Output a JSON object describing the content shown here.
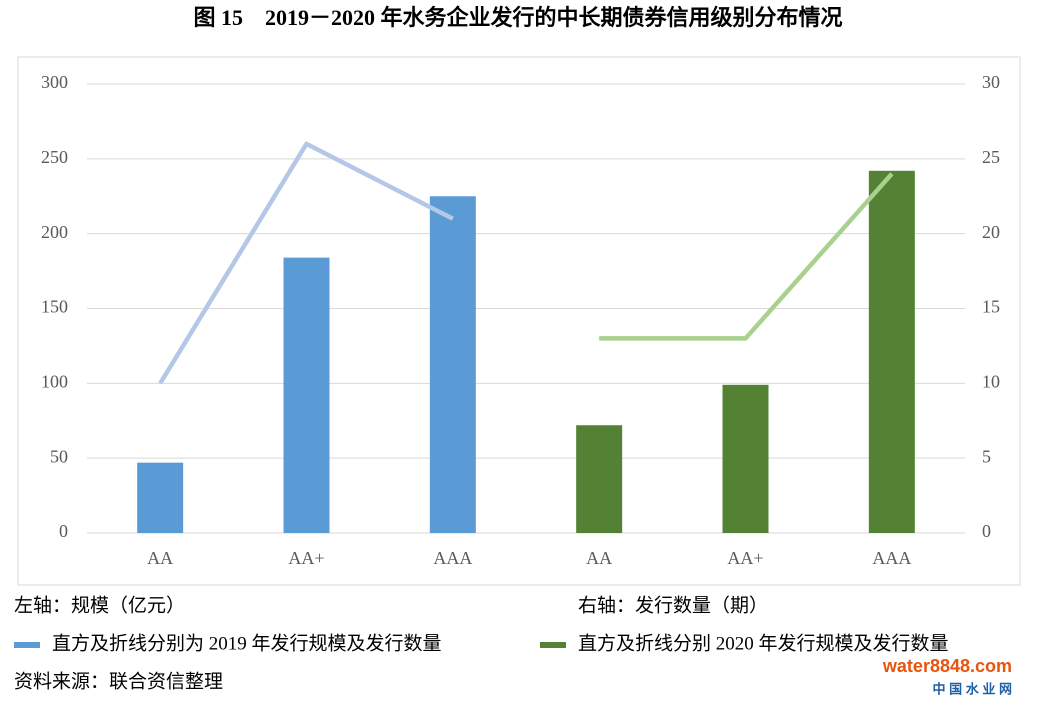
{
  "chart_data": {
    "type": "bar",
    "title": "图 15　2019－2020 年水务企业发行的中长期债券信用级别分布情况",
    "categories": [
      "AA",
      "AA+",
      "AAA",
      "AA",
      "AA+",
      "AAA"
    ],
    "series": [
      {
        "name": "直方及折线分别为 2019 年发行规模及发行数量",
        "color": "#5b9bd5",
        "line_color": "#b4c7e7",
        "values": [
          47,
          184,
          225,
          null,
          null,
          null
        ],
        "line_values": [
          10,
          26,
          21,
          null,
          null,
          null
        ]
      },
      {
        "name": "直方及折线分别 2020 年发行规模及发行数量",
        "color": "#548235",
        "line_color": "#a9d18e",
        "values": [
          null,
          null,
          null,
          72,
          99,
          242
        ],
        "line_values": [
          null,
          null,
          null,
          13,
          13,
          24
        ]
      }
    ],
    "ylim": [
      0,
      300
    ],
    "yticks": [
      0,
      50,
      100,
      150,
      200,
      250,
      300
    ],
    "y2lim": [
      0,
      30
    ],
    "y2ticks": [
      0,
      5,
      10,
      15,
      20,
      25,
      30
    ],
    "grid": true,
    "left_axis_note": "左轴：规模（亿元）",
    "right_axis_note": "右轴：发行数量（期）",
    "source": "资料来源：联合资信整理",
    "watermark": "water8848.com",
    "watermark_sub": "中 国 水 业 网"
  }
}
